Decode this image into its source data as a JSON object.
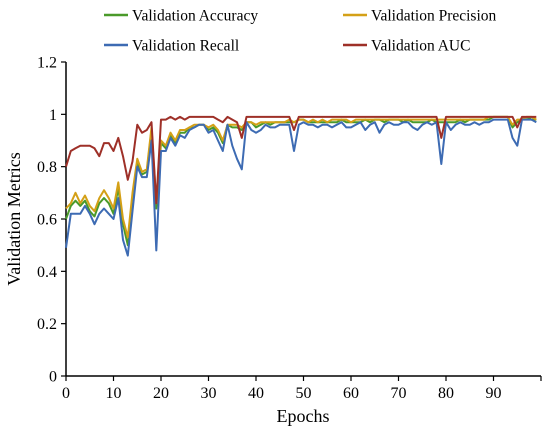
{
  "chart_data": {
    "type": "line",
    "xlabel": "Epochs",
    "ylabel": "Validation Metrics",
    "xlim": [
      0,
      100
    ],
    "ylim": [
      0,
      1.2
    ],
    "x_ticks": [
      0,
      10,
      20,
      30,
      40,
      50,
      60,
      70,
      80,
      90
    ],
    "y_ticks": [
      0,
      0.2,
      0.4,
      0.6,
      0.8,
      1,
      1.2
    ],
    "y_tick_labels": [
      "0",
      "0.2",
      "0.4",
      "0.6",
      "0.8",
      "1",
      "1.2"
    ],
    "grid": false,
    "legend_position": "top",
    "x": [
      0,
      1,
      2,
      3,
      4,
      5,
      6,
      7,
      8,
      9,
      10,
      11,
      12,
      13,
      14,
      15,
      16,
      17,
      18,
      19,
      20,
      21,
      22,
      23,
      24,
      25,
      26,
      27,
      28,
      29,
      30,
      31,
      32,
      33,
      34,
      35,
      36,
      37,
      38,
      39,
      40,
      41,
      42,
      43,
      44,
      45,
      46,
      47,
      48,
      49,
      50,
      51,
      52,
      53,
      54,
      55,
      56,
      57,
      58,
      59,
      60,
      61,
      62,
      63,
      64,
      65,
      66,
      67,
      68,
      69,
      70,
      71,
      72,
      73,
      74,
      75,
      76,
      77,
      78,
      79,
      80,
      81,
      82,
      83,
      84,
      85,
      86,
      87,
      88,
      89,
      90,
      91,
      92,
      93,
      94,
      95,
      96,
      97,
      98,
      99
    ],
    "series": [
      {
        "name": "Validation Accuracy",
        "color": "#4a9a2a",
        "values": [
          0.6,
          0.65,
          0.67,
          0.65,
          0.67,
          0.63,
          0.61,
          0.66,
          0.68,
          0.66,
          0.62,
          0.72,
          0.58,
          0.5,
          0.68,
          0.81,
          0.77,
          0.78,
          0.94,
          0.64,
          0.89,
          0.87,
          0.92,
          0.89,
          0.93,
          0.93,
          0.95,
          0.95,
          0.96,
          0.96,
          0.94,
          0.95,
          0.93,
          0.89,
          0.96,
          0.95,
          0.95,
          0.94,
          0.97,
          0.97,
          0.95,
          0.96,
          0.97,
          0.96,
          0.97,
          0.97,
          0.97,
          0.97,
          0.97,
          0.98,
          0.98,
          0.97,
          0.97,
          0.97,
          0.97,
          0.97,
          0.97,
          0.97,
          0.98,
          0.97,
          0.97,
          0.97,
          0.97,
          0.98,
          0.97,
          0.98,
          0.98,
          0.97,
          0.98,
          0.98,
          0.98,
          0.97,
          0.98,
          0.97,
          0.97,
          0.97,
          0.97,
          0.98,
          0.97,
          0.97,
          0.97,
          0.97,
          0.97,
          0.98,
          0.97,
          0.98,
          0.98,
          0.98,
          0.98,
          0.98,
          0.99,
          0.99,
          0.99,
          0.99,
          0.95,
          0.97,
          0.98,
          0.99,
          0.98,
          0.98
        ]
      },
      {
        "name": "Validation Precision",
        "color": "#d4a017",
        "values": [
          0.64,
          0.66,
          0.7,
          0.66,
          0.69,
          0.65,
          0.63,
          0.68,
          0.71,
          0.68,
          0.64,
          0.74,
          0.6,
          0.53,
          0.7,
          0.83,
          0.78,
          0.79,
          0.95,
          0.66,
          0.9,
          0.88,
          0.93,
          0.9,
          0.94,
          0.94,
          0.95,
          0.96,
          0.96,
          0.96,
          0.95,
          0.96,
          0.94,
          0.9,
          0.96,
          0.96,
          0.96,
          0.95,
          0.97,
          0.97,
          0.96,
          0.97,
          0.97,
          0.97,
          0.97,
          0.97,
          0.97,
          0.98,
          0.97,
          0.98,
          0.98,
          0.97,
          0.98,
          0.97,
          0.98,
          0.97,
          0.98,
          0.98,
          0.98,
          0.98,
          0.97,
          0.98,
          0.98,
          0.98,
          0.98,
          0.98,
          0.98,
          0.98,
          0.98,
          0.98,
          0.98,
          0.98,
          0.98,
          0.98,
          0.98,
          0.98,
          0.98,
          0.98,
          0.98,
          0.98,
          0.98,
          0.98,
          0.98,
          0.98,
          0.98,
          0.98,
          0.98,
          0.98,
          0.98,
          0.99,
          0.99,
          0.99,
          0.99,
          0.99,
          0.96,
          0.98,
          0.98,
          0.99,
          0.99,
          0.98
        ]
      },
      {
        "name": "Validation Recall",
        "color": "#3d6bb3",
        "values": [
          0.49,
          0.62,
          0.62,
          0.62,
          0.65,
          0.62,
          0.58,
          0.62,
          0.64,
          0.62,
          0.6,
          0.68,
          0.52,
          0.46,
          0.63,
          0.8,
          0.76,
          0.76,
          0.9,
          0.48,
          0.86,
          0.86,
          0.91,
          0.88,
          0.92,
          0.91,
          0.94,
          0.95,
          0.96,
          0.96,
          0.93,
          0.94,
          0.9,
          0.86,
          0.96,
          0.88,
          0.83,
          0.79,
          0.97,
          0.94,
          0.93,
          0.94,
          0.96,
          0.95,
          0.95,
          0.96,
          0.96,
          0.96,
          0.86,
          0.96,
          0.97,
          0.96,
          0.96,
          0.95,
          0.96,
          0.96,
          0.95,
          0.96,
          0.97,
          0.95,
          0.95,
          0.96,
          0.97,
          0.94,
          0.96,
          0.97,
          0.93,
          0.96,
          0.97,
          0.96,
          0.96,
          0.97,
          0.97,
          0.95,
          0.94,
          0.96,
          0.97,
          0.96,
          0.97,
          0.81,
          0.97,
          0.94,
          0.96,
          0.97,
          0.96,
          0.96,
          0.97,
          0.96,
          0.97,
          0.97,
          0.98,
          0.98,
          0.98,
          0.98,
          0.91,
          0.88,
          0.98,
          0.98,
          0.98,
          0.97
        ]
      },
      {
        "name": "Validation AUC",
        "color": "#9e3028",
        "values": [
          0.8,
          0.86,
          0.87,
          0.88,
          0.88,
          0.88,
          0.87,
          0.84,
          0.89,
          0.89,
          0.86,
          0.91,
          0.84,
          0.75,
          0.82,
          0.96,
          0.93,
          0.94,
          0.97,
          0.66,
          0.98,
          0.98,
          0.99,
          0.98,
          0.99,
          0.98,
          0.99,
          0.99,
          0.99,
          0.99,
          0.99,
          0.99,
          0.98,
          0.97,
          0.99,
          0.98,
          0.97,
          0.91,
          0.99,
          0.99,
          0.99,
          0.99,
          0.99,
          0.99,
          0.99,
          0.99,
          0.99,
          0.99,
          0.94,
          0.99,
          0.99,
          0.99,
          0.99,
          0.99,
          0.99,
          0.99,
          0.99,
          0.99,
          0.99,
          0.99,
          0.99,
          0.99,
          0.99,
          0.99,
          0.99,
          0.99,
          0.99,
          0.99,
          0.99,
          0.99,
          0.99,
          0.99,
          0.99,
          0.99,
          0.99,
          0.99,
          0.99,
          0.99,
          0.99,
          0.91,
          0.99,
          0.99,
          0.99,
          0.99,
          0.99,
          0.99,
          0.99,
          0.99,
          0.99,
          0.99,
          0.99,
          0.99,
          0.99,
          0.99,
          0.99,
          0.95,
          0.99,
          0.99,
          0.99,
          0.99
        ]
      }
    ]
  }
}
